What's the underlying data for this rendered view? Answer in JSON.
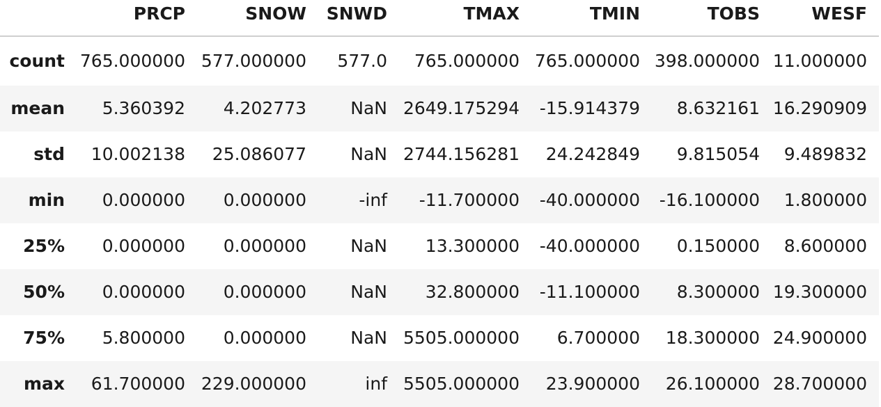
{
  "table": {
    "index_header": "",
    "columns": [
      "PRCP",
      "SNOW",
      "SNWD",
      "TMAX",
      "TMIN",
      "TOBS",
      "WESF"
    ],
    "rows": [
      {
        "label": "count",
        "values": [
          "765.000000",
          "577.000000",
          "577.0",
          "765.000000",
          "765.000000",
          "398.000000",
          "11.000000"
        ]
      },
      {
        "label": "mean",
        "values": [
          "5.360392",
          "4.202773",
          "NaN",
          "2649.175294",
          "-15.914379",
          "8.632161",
          "16.290909"
        ]
      },
      {
        "label": "std",
        "values": [
          "10.002138",
          "25.086077",
          "NaN",
          "2744.156281",
          "24.242849",
          "9.815054",
          "9.489832"
        ]
      },
      {
        "label": "min",
        "values": [
          "0.000000",
          "0.000000",
          "-inf",
          "-11.700000",
          "-40.000000",
          "-16.100000",
          "1.800000"
        ]
      },
      {
        "label": "25%",
        "values": [
          "0.000000",
          "0.000000",
          "NaN",
          "13.300000",
          "-40.000000",
          "0.150000",
          "8.600000"
        ]
      },
      {
        "label": "50%",
        "values": [
          "0.000000",
          "0.000000",
          "NaN",
          "32.800000",
          "-11.100000",
          "8.300000",
          "19.300000"
        ]
      },
      {
        "label": "75%",
        "values": [
          "5.800000",
          "0.000000",
          "NaN",
          "5505.000000",
          "6.700000",
          "18.300000",
          "24.900000"
        ]
      },
      {
        "label": "max",
        "values": [
          "61.700000",
          "229.000000",
          "inf",
          "5505.000000",
          "23.900000",
          "26.100000",
          "28.700000"
        ]
      }
    ]
  }
}
